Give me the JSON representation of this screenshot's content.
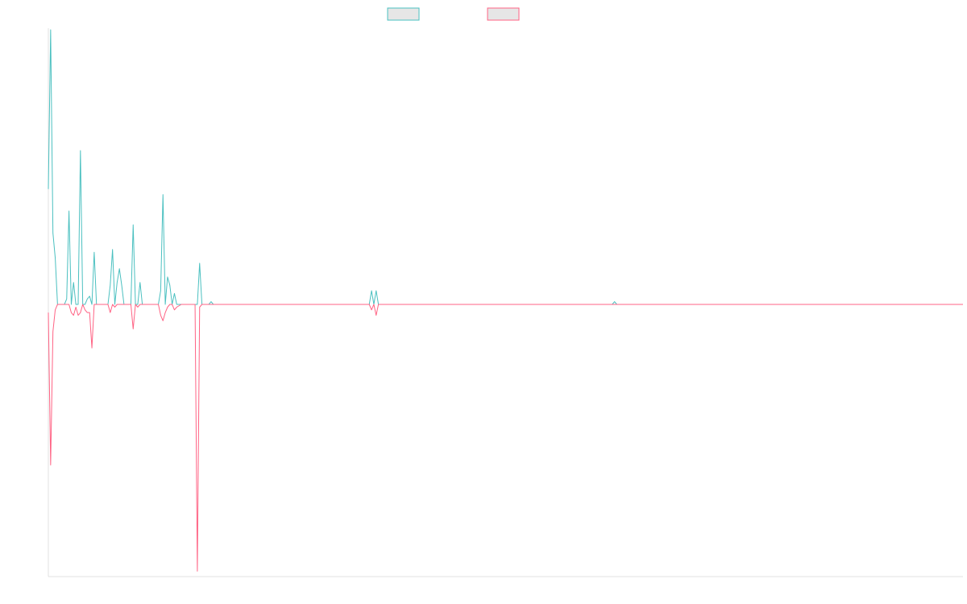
{
  "chart_data": {
    "type": "line",
    "title": "",
    "xlabel": "",
    "ylabel": "",
    "legend_position": "top-center",
    "grid": false,
    "x_count": 400,
    "ylim": [
      -1.0,
      1.0
    ],
    "baseline": 0,
    "series": [
      {
        "color": "#4bc0c0",
        "legend_fill": "#e6e6e6",
        "points": [
          [
            0,
            0.42
          ],
          [
            1,
            1.0
          ],
          [
            2,
            0.26
          ],
          [
            3,
            0.17
          ],
          [
            4,
            0.0
          ],
          [
            7,
            0.0
          ],
          [
            8,
            0.02
          ],
          [
            9,
            0.34
          ],
          [
            10,
            0.0
          ],
          [
            11,
            0.08
          ],
          [
            12,
            0.0
          ],
          [
            13,
            0.0
          ],
          [
            14,
            0.56
          ],
          [
            15,
            0.0
          ],
          [
            16,
            0.0
          ],
          [
            17,
            0.02
          ],
          [
            18,
            0.03
          ],
          [
            19,
            0.0
          ],
          [
            20,
            0.19
          ],
          [
            21,
            0.0
          ],
          [
            22,
            0.0
          ],
          [
            26,
            0.0
          ],
          [
            27,
            0.07
          ],
          [
            28,
            0.2
          ],
          [
            29,
            0.0
          ],
          [
            30,
            0.08
          ],
          [
            31,
            0.13
          ],
          [
            32,
            0.07
          ],
          [
            33,
            0.0
          ],
          [
            34,
            0.0
          ],
          [
            35,
            0.0
          ],
          [
            36,
            0.0
          ],
          [
            37,
            0.29
          ],
          [
            38,
            0.0
          ],
          [
            39,
            0.0
          ],
          [
            40,
            0.08
          ],
          [
            41,
            0.0
          ],
          [
            43,
            0.0
          ],
          [
            48,
            0.0
          ],
          [
            49,
            0.05
          ],
          [
            50,
            0.4
          ],
          [
            51,
            0.0
          ],
          [
            52,
            0.1
          ],
          [
            53,
            0.07
          ],
          [
            54,
            0.0
          ],
          [
            55,
            0.04
          ],
          [
            56,
            0.0
          ],
          [
            58,
            0.0
          ],
          [
            65,
            0.0
          ],
          [
            66,
            0.15
          ],
          [
            67,
            0.0
          ],
          [
            68,
            0.0
          ],
          [
            70,
            0.0
          ],
          [
            71,
            0.01
          ],
          [
            72,
            0.0
          ],
          [
            79,
            0.0
          ],
          [
            80,
            0.0
          ],
          [
            100,
            0.0
          ],
          [
            101,
            0.0
          ],
          [
            104,
            0.0
          ],
          [
            105,
            0.0
          ],
          [
            140,
            0.0
          ],
          [
            141,
            0.05
          ],
          [
            142,
            0.0
          ],
          [
            143,
            0.05
          ],
          [
            144,
            0.0
          ],
          [
            145,
            0.0
          ],
          [
            166,
            0.0
          ],
          [
            167,
            0.0
          ],
          [
            170,
            0.0
          ],
          [
            171,
            0.0
          ],
          [
            174,
            0.0
          ],
          [
            175,
            0.0
          ],
          [
            246,
            0.0
          ],
          [
            247,
            0.01
          ],
          [
            248,
            0.0
          ],
          [
            399,
            0.0
          ]
        ]
      },
      {
        "color": "#ff6384",
        "legend_fill": "#e6e6e6",
        "points": [
          [
            0,
            -0.03
          ],
          [
            1,
            -0.59
          ],
          [
            2,
            -0.1
          ],
          [
            3,
            -0.02
          ],
          [
            4,
            0.0
          ],
          [
            9,
            0.0
          ],
          [
            10,
            -0.03
          ],
          [
            11,
            -0.04
          ],
          [
            12,
            -0.01
          ],
          [
            13,
            -0.04
          ],
          [
            14,
            -0.03
          ],
          [
            15,
            0.0
          ],
          [
            16,
            -0.02
          ],
          [
            17,
            -0.03
          ],
          [
            18,
            -0.03
          ],
          [
            19,
            -0.16
          ],
          [
            20,
            0.0
          ],
          [
            26,
            0.0
          ],
          [
            27,
            -0.03
          ],
          [
            28,
            0.0
          ],
          [
            29,
            -0.01
          ],
          [
            30,
            0.0
          ],
          [
            33,
            0.0
          ],
          [
            34,
            0.0
          ],
          [
            36,
            0.0
          ],
          [
            37,
            -0.09
          ],
          [
            38,
            0.0
          ],
          [
            39,
            -0.01
          ],
          [
            40,
            0.0
          ],
          [
            43,
            0.0
          ],
          [
            48,
            0.0
          ],
          [
            49,
            -0.04
          ],
          [
            50,
            -0.06
          ],
          [
            51,
            -0.03
          ],
          [
            52,
            -0.01
          ],
          [
            53,
            0.0
          ],
          [
            54,
            0.0
          ],
          [
            55,
            -0.02
          ],
          [
            56,
            -0.01
          ],
          [
            58,
            0.0
          ],
          [
            64,
            0.0
          ],
          [
            65,
            -0.98
          ],
          [
            66,
            -0.01
          ],
          [
            67,
            0.0
          ],
          [
            100,
            0.0
          ],
          [
            101,
            0.0
          ],
          [
            104,
            0.0
          ],
          [
            105,
            0.0
          ],
          [
            140,
            0.0
          ],
          [
            141,
            -0.02
          ],
          [
            142,
            0.0
          ],
          [
            143,
            -0.04
          ],
          [
            144,
            0.0
          ],
          [
            166,
            0.0
          ],
          [
            167,
            0.0
          ],
          [
            170,
            0.0
          ],
          [
            171,
            0.0
          ],
          [
            174,
            0.0
          ],
          [
            175,
            0.0
          ],
          [
            399,
            0.0
          ]
        ]
      }
    ]
  }
}
